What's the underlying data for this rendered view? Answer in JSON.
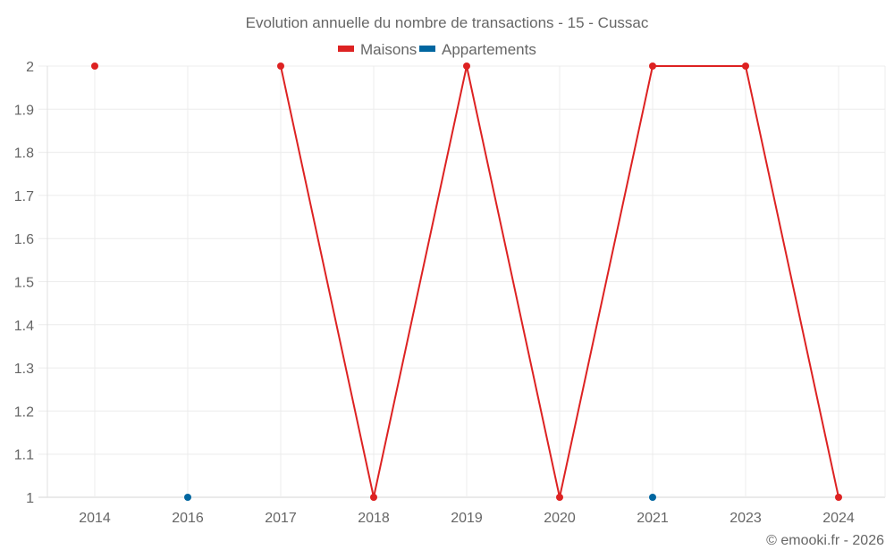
{
  "chart_data": {
    "type": "line",
    "title": "Evolution annuelle du nombre de transactions - 15 - Cussac",
    "xlabel": "",
    "ylabel": "",
    "categories": [
      "2014",
      "2016",
      "2017",
      "2018",
      "2019",
      "2020",
      "2021",
      "2023",
      "2024"
    ],
    "series": [
      {
        "name": "Maisons",
        "color": "#dd2222",
        "values": [
          2,
          null,
          2,
          1,
          2,
          1,
          2,
          2,
          1
        ]
      },
      {
        "name": "Appartements",
        "color": "#0066a0",
        "values": [
          null,
          1,
          null,
          null,
          null,
          null,
          1,
          null,
          null
        ]
      }
    ],
    "ylim": [
      1,
      2
    ],
    "yticks": [
      "1",
      "1.1",
      "1.2",
      "1.3",
      "1.4",
      "1.5",
      "1.6",
      "1.7",
      "1.8",
      "1.9",
      "2"
    ],
    "grid": true,
    "legend_position": "top"
  },
  "title": "Evolution annuelle du nombre de transactions - 15 - Cussac",
  "legend": [
    {
      "label": "Maisons",
      "color": "#dd2222"
    },
    {
      "label": "Appartements",
      "color": "#0066a0"
    }
  ],
  "credit": "© emooki.fr - 2026"
}
